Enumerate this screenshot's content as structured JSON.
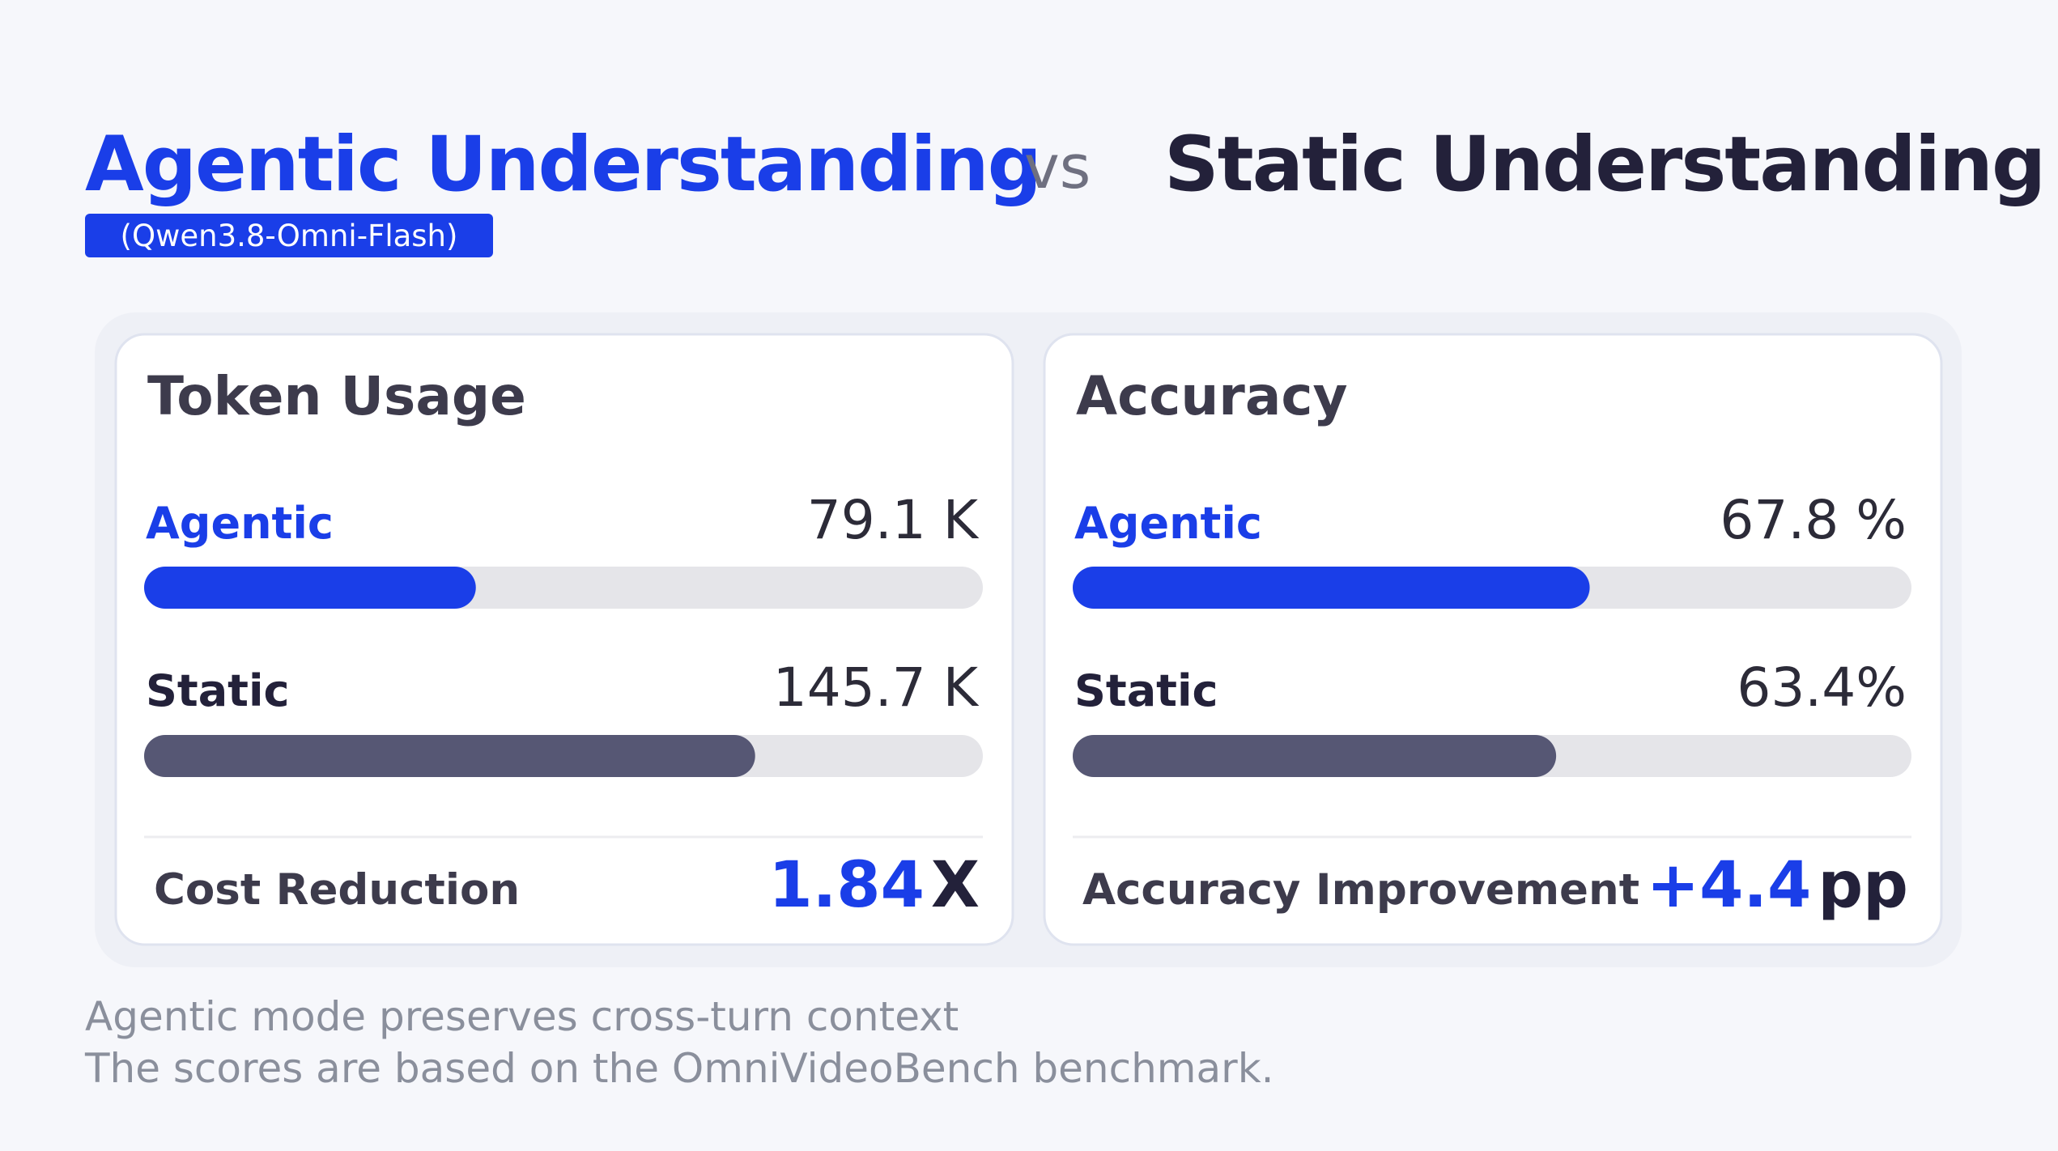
{
  "header": {
    "title_left": "Agentic Understanding",
    "vs": "vs",
    "title_right": "Static Understanding",
    "badge": "(Qwen3.8-Omni-Flash)"
  },
  "chart_data": [
    {
      "type": "bar",
      "title": "Token Usage",
      "categories": [
        "Agentic",
        "Static"
      ],
      "values": [
        79.1,
        145.7
      ],
      "value_labels": [
        "79.1 K",
        "145.7 K"
      ],
      "colors": [
        "#1a3ee8",
        "#565774"
      ],
      "xlim": [
        0,
        200
      ],
      "annotation": {
        "label": "Cost Reduction",
        "value": "1.84",
        "unit": "X"
      }
    },
    {
      "type": "bar",
      "title": "Accuracy",
      "categories": [
        "Agentic",
        "Static"
      ],
      "values": [
        67.8,
        63.4
      ],
      "value_labels": [
        "67.8 %",
        "63.4%"
      ],
      "colors": [
        "#1a3ee8",
        "#565774"
      ],
      "xlim": [
        0,
        110
      ],
      "annotation": {
        "label": "Accuracy Improvement",
        "value": "+4.4",
        "unit": "pp"
      }
    }
  ],
  "footer": [
    "Agentic mode preserves cross-turn context",
    "The scores are based on the OmniVideoBench benchmark."
  ]
}
